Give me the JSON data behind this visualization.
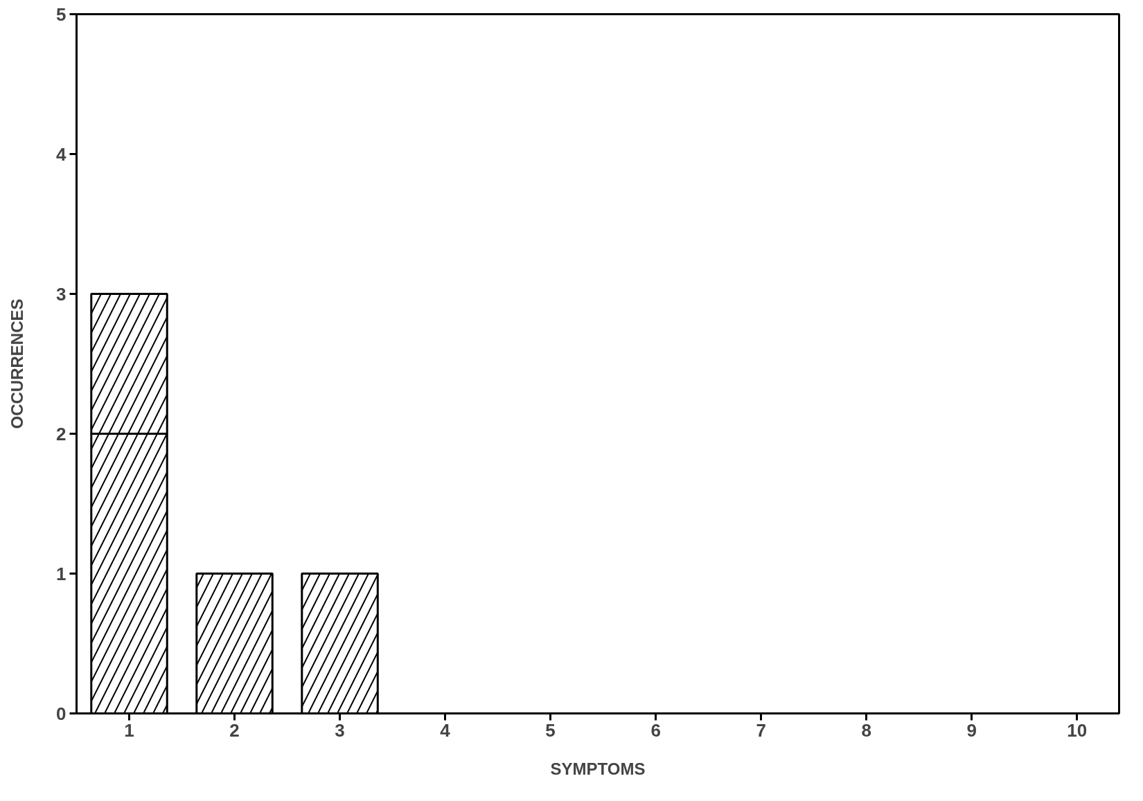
{
  "chart_data": {
    "type": "bar",
    "stacked": true,
    "xlabel": "SYMPTOMS",
    "ylabel": "OCCURRENCES",
    "categories": [
      "1",
      "2",
      "3",
      "4",
      "5",
      "6",
      "7",
      "8",
      "9",
      "10"
    ],
    "series": [
      {
        "color": "#000000",
        "values": [
          2,
          1,
          1,
          0,
          0,
          0,
          0,
          0,
          0,
          0
        ]
      },
      {
        "color": "#000000",
        "values": [
          1,
          0,
          0,
          0,
          0,
          0,
          0,
          0,
          0,
          0
        ]
      }
    ],
    "ylim": [
      0,
      5
    ],
    "yticks": [
      0,
      1,
      2,
      3,
      4,
      5
    ],
    "grid": false
  }
}
